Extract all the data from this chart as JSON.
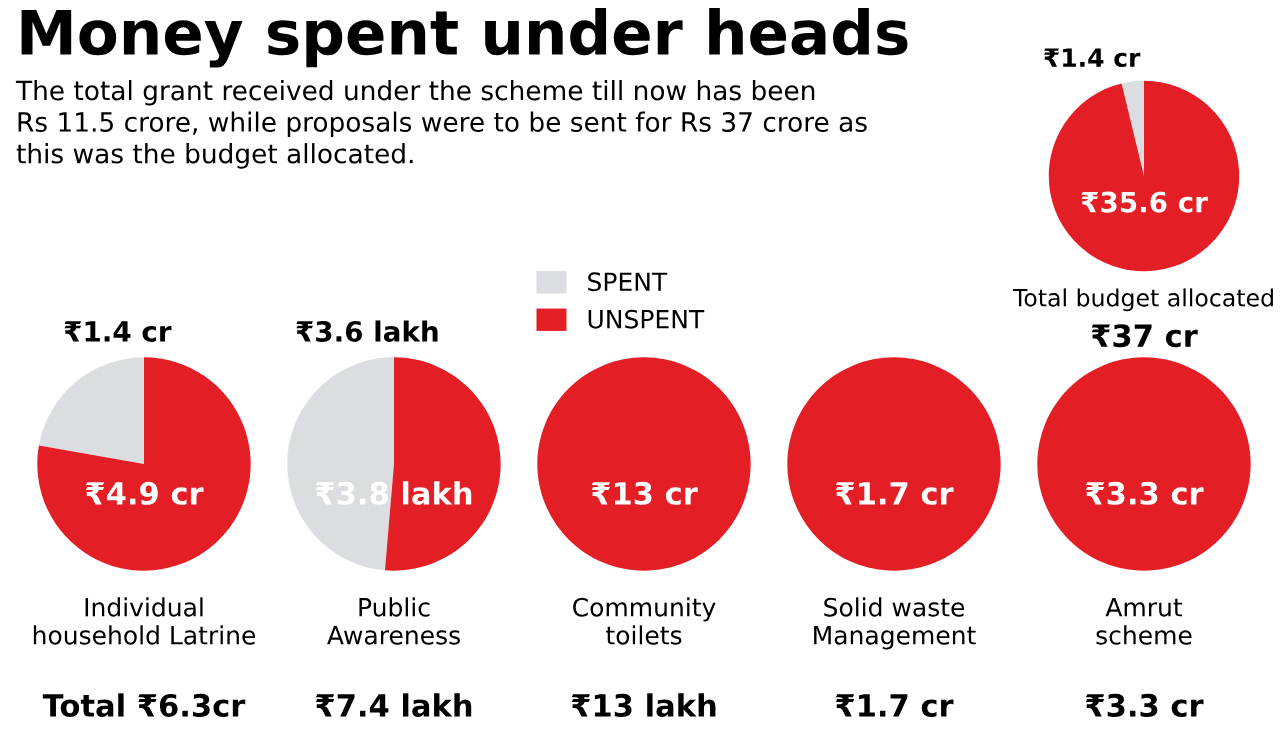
{
  "chart_data": [
    {
      "type": "pie",
      "title": "Money spent under heads",
      "subtitle": "The total grant received under the scheme till now has been\nRs 11.5 crore, while proposals were to be sent for Rs 37 crore as\nthis was the budget allocated.",
      "categories": [
        "SPENT",
        "UNSPENT"
      ],
      "values": [
        1.4,
        35.6
      ],
      "colors": [
        "#dcdde0",
        "#e31e24"
      ],
      "value_labels": [
        "₹1.4 cr",
        "₹35.6 cr"
      ],
      "xlabel": "Total budget allocated",
      "annotations": [
        "₹37 cr"
      ],
      "legend": "left"
    },
    {
      "type": "pie",
      "values": [
        1.4,
        4.9
      ],
      "colors": [
        "#dcdde0",
        "#e31e24"
      ],
      "value_labels": [
        "₹1.4 cr",
        "₹4.9 cr"
      ],
      "xlabel": "Individual\nhousehold Latrine",
      "annotations": [
        "Total ₹6.3cr"
      ]
    },
    {
      "type": "pie",
      "values": [
        3.6,
        3.8
      ],
      "colors": [
        "#dcdde0",
        "#e31e24"
      ],
      "value_labels": [
        "₹3.6 lakh",
        "₹3.8 lakh"
      ],
      "xlabel": "Public\nAwareness",
      "annotations": [
        "₹7.4 lakh"
      ]
    },
    {
      "type": "pie",
      "values": [
        0,
        13
      ],
      "colors": [
        "#dcdde0",
        "#e31e24"
      ],
      "value_labels": [
        null,
        "₹13 cr"
      ],
      "xlabel": "Community\ntoilets",
      "annotations": [
        "₹13 lakh"
      ]
    },
    {
      "type": "pie",
      "values": [
        0,
        1.7
      ],
      "colors": [
        "#dcdde0",
        "#e31e24"
      ],
      "value_labels": [
        null,
        "₹1.7 cr"
      ],
      "xlabel": "Solid waste\nManagement",
      "annotations": [
        "₹1.7 cr"
      ]
    },
    {
      "type": "pie",
      "values": [
        0,
        3.3
      ],
      "colors": [
        "#dcdde0",
        "#e31e24"
      ],
      "value_labels": [
        null,
        "₹3.3 cr"
      ],
      "xlabel": "Amrut\nscheme",
      "annotations": [
        "₹3.3 cr"
      ]
    }
  ]
}
